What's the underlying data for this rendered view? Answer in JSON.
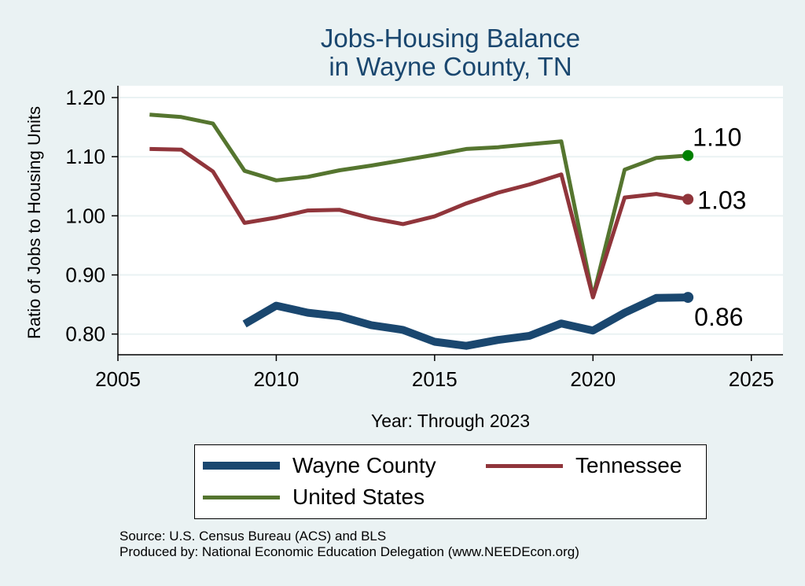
{
  "chart_data": {
    "type": "line",
    "title": [
      "Jobs-Housing Balance",
      "in Wayne County, TN"
    ],
    "xlabel": "Year: Through 2023",
    "ylabel": "Ratio of Jobs to Housing Units",
    "xlim": [
      2005,
      2026
    ],
    "ylim": [
      0.765,
      1.22
    ],
    "xticks": [
      2005,
      2010,
      2015,
      2020,
      2025
    ],
    "yticks": [
      0.8,
      0.9,
      1.0,
      1.1,
      1.2
    ],
    "ytick_labels": [
      "0.80",
      "0.90",
      "1.00",
      "1.10",
      "1.20"
    ],
    "grid": true,
    "series": [
      {
        "name": "Wayne County",
        "color": "#1a476f",
        "x": [
          2009,
          2010,
          2011,
          2012,
          2013,
          2014,
          2015,
          2016,
          2017,
          2018,
          2019,
          2020,
          2021,
          2022,
          2023
        ],
        "values": [
          0.817,
          0.848,
          0.836,
          0.83,
          0.815,
          0.807,
          0.787,
          0.78,
          0.79,
          0.797,
          0.818,
          0.806,
          0.836,
          0.861,
          0.862
        ],
        "end_label": "0.86"
      },
      {
        "name": "Tennessee",
        "color": "#90353b",
        "x": [
          2006,
          2007,
          2008,
          2009,
          2010,
          2011,
          2012,
          2013,
          2014,
          2015,
          2016,
          2017,
          2018,
          2019,
          2020,
          2021,
          2022,
          2023
        ],
        "values": [
          1.113,
          1.112,
          1.075,
          0.988,
          0.997,
          1.009,
          1.01,
          0.996,
          0.986,
          0.999,
          1.021,
          1.039,
          1.053,
          1.07,
          0.862,
          1.031,
          1.037,
          1.028
        ],
        "end_label": "1.03"
      },
      {
        "name": "United States",
        "color": "#55752f",
        "x": [
          2006,
          2007,
          2008,
          2009,
          2010,
          2011,
          2012,
          2013,
          2014,
          2015,
          2016,
          2017,
          2018,
          2019,
          2020,
          2021,
          2022,
          2023
        ],
        "values": [
          1.171,
          1.167,
          1.156,
          1.076,
          1.06,
          1.066,
          1.077,
          1.085,
          1.094,
          1.103,
          1.113,
          1.116,
          1.121,
          1.126,
          0.863,
          1.078,
          1.098,
          1.102
        ],
        "end_label": "1.10"
      }
    ]
  },
  "legend": [
    {
      "label": "Wayne County",
      "color": "#1a476f"
    },
    {
      "label": "Tennessee",
      "color": "#90353b"
    },
    {
      "label": "United States",
      "color": "#55752f"
    }
  ],
  "source": {
    "line1": "Source: U.S. Census Bureau (ACS) and BLS",
    "line2": "Produced by: National Economic Education Delegation (www.NEEDEcon.org)"
  }
}
